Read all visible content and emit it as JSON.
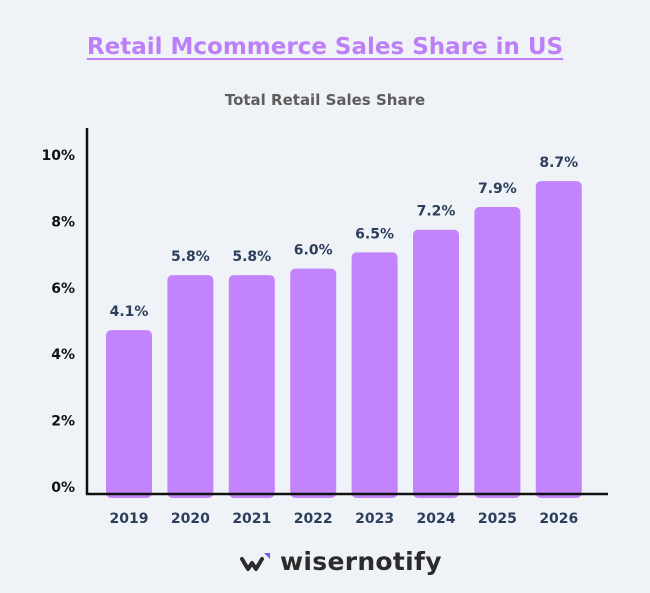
{
  "chart_data": {
    "type": "bar",
    "title": "Retail Mcommerce Sales Share in US",
    "subtitle": "Total Retail Sales Share",
    "categories": [
      "2019",
      "2020",
      "2021",
      "2022",
      "2023",
      "2024",
      "2025",
      "2026"
    ],
    "values": [
      4.1,
      5.8,
      5.8,
      6.0,
      6.5,
      7.2,
      7.9,
      8.7
    ],
    "data_labels": [
      "4.1%",
      "5.8%",
      "5.8%",
      "6.0%",
      "6.5%",
      "7.2%",
      "7.9%",
      "8.7%"
    ],
    "y_ticks": [
      "0%",
      "2%",
      "4%",
      "6%",
      "8%",
      "10%"
    ],
    "ylim": [
      0,
      10
    ],
    "grid": false,
    "bar_color": "#c383fd",
    "label_color": "#2d3e5c"
  },
  "brand": {
    "name": "wisernotify"
  }
}
